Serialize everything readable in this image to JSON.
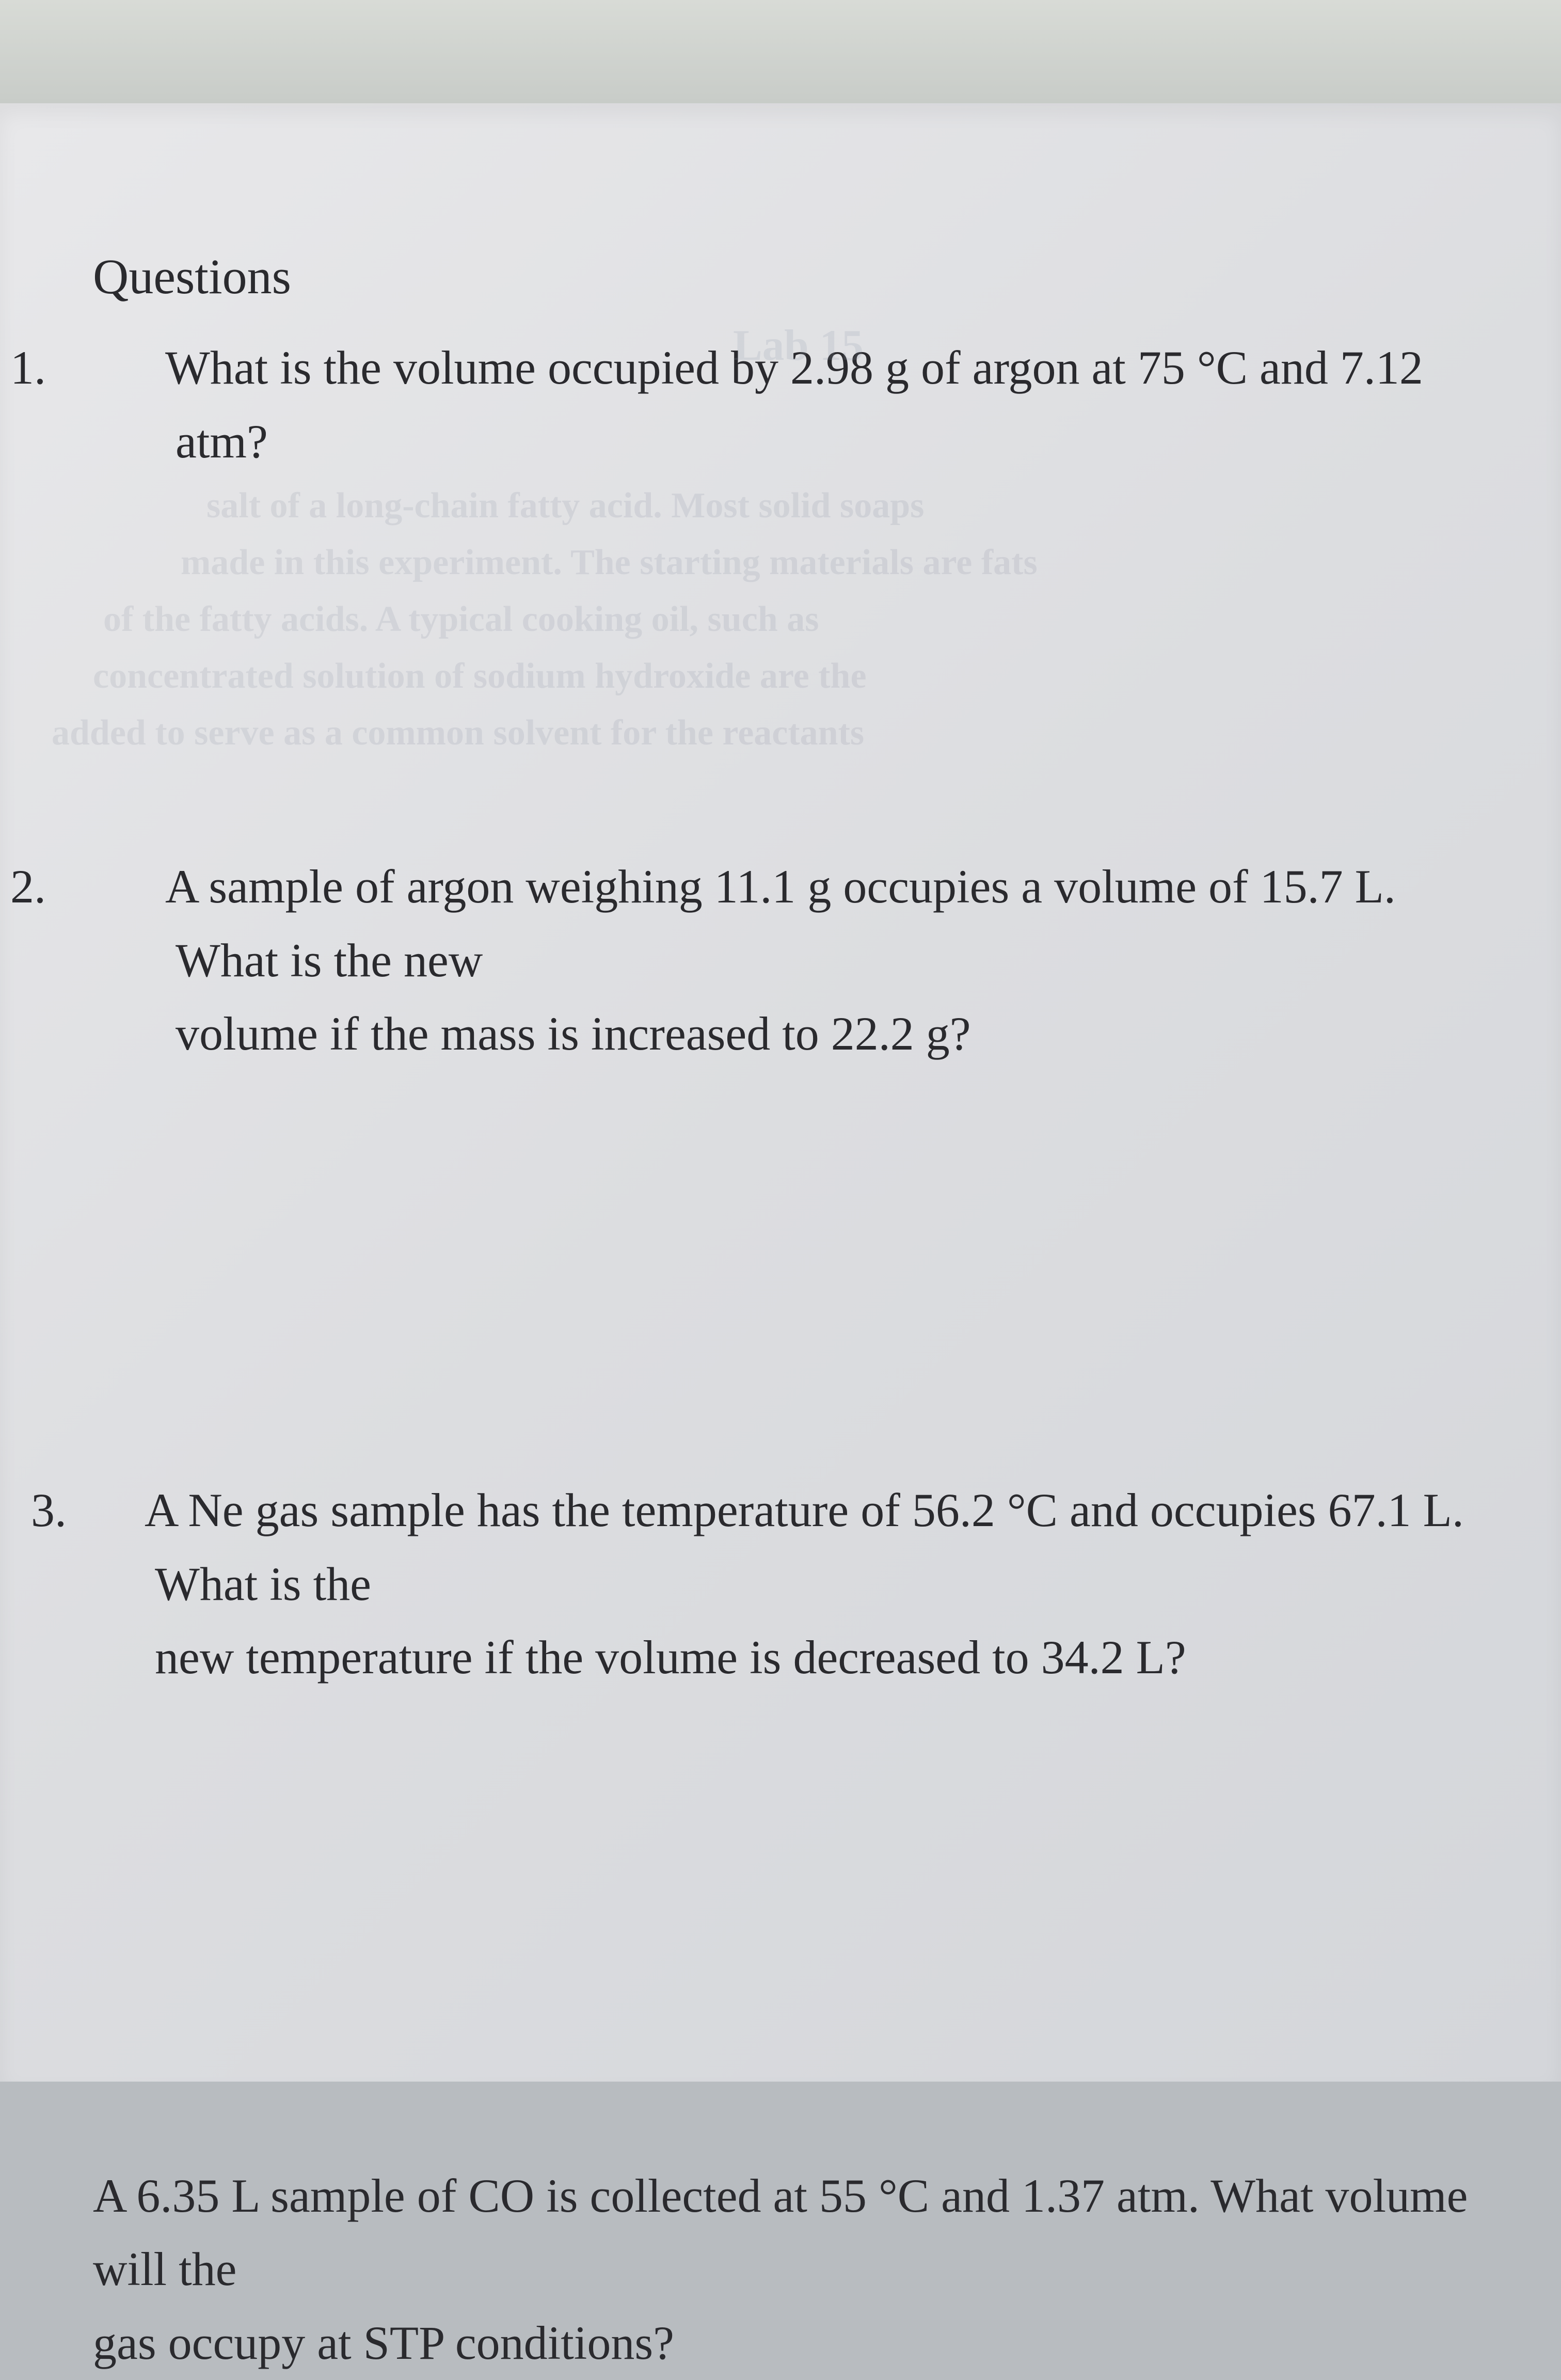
{
  "page": {
    "heading": "Questions",
    "ghost_header": "Lab 15",
    "background_color": "#dcdde0",
    "text_color": "#2a2a2e",
    "font_family": "Times New Roman",
    "heading_fontsize": 96,
    "body_fontsize": 92
  },
  "questions": {
    "q1": {
      "number": "1.",
      "text": "What is the volume occupied by 2.98 g of argon at 75 °C and 7.12 atm?"
    },
    "q2": {
      "number": "2.",
      "text_line1": "A sample of argon weighing 11.1 g occupies a volume of 15.7 L.  What is the new",
      "text_line2": "volume if the mass is increased to 22.2 g?"
    },
    "q3": {
      "number": "3.",
      "text_line1": "A Ne gas sample has the temperature of 56.2 °C and occupies 67.1 L.  What is the",
      "text_line2": "new temperature if the volume is decreased to 34.2 L?"
    },
    "q4": {
      "text_line1": "A 6.35 L sample of CO is collected at 55 °C and 1.37 atm.  What volume will the",
      "text_line2": "gas occupy at STP conditions?"
    }
  },
  "bleed_through": {
    "line1": "salt of a long-chain fatty acid. Most solid soaps",
    "line2": "made in this experiment. The starting materials are fats",
    "line3": "of the fatty acids. A typical cooking oil, such as",
    "line4": "concentrated solution of sodium hydroxide are the",
    "line5": "added to serve as a common solvent for the reactants"
  }
}
